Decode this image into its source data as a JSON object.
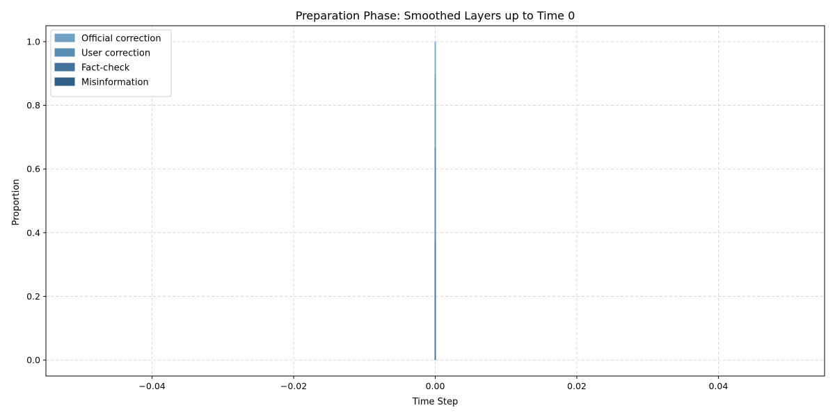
{
  "chart_data": {
    "type": "area",
    "title": "Preparation Phase: Smoothed Layers up to Time 0",
    "xlabel": "Time Step",
    "ylabel": "Proportion",
    "xlim": [
      -0.055,
      0.055
    ],
    "ylim": [
      -0.05,
      1.05
    ],
    "xticks": [
      -0.04,
      -0.02,
      0.0,
      0.02,
      0.04
    ],
    "xtick_labels": [
      "−0.04",
      "−0.02",
      "0.00",
      "0.02",
      "0.04"
    ],
    "yticks": [
      0.0,
      0.2,
      0.4,
      0.6,
      0.8,
      1.0
    ],
    "ytick_labels": [
      "0.0",
      "0.2",
      "0.4",
      "0.6",
      "0.8",
      "1.0"
    ],
    "grid": true,
    "stacked": true,
    "legend_position": "upper-left",
    "x": [
      0
    ],
    "series": [
      {
        "name": "Misinformation",
        "values": [
          0.37
        ],
        "color": "#2e5f86"
      },
      {
        "name": "Fact-check",
        "values": [
          0.3
        ],
        "color": "#42729a"
      },
      {
        "name": "User correction",
        "values": [
          0.23
        ],
        "color": "#5a8eb2"
      },
      {
        "name": "Official correction",
        "values": [
          0.1
        ],
        "color": "#6fa0c4"
      }
    ],
    "legend_order": [
      "Official correction",
      "User correction",
      "Fact-check",
      "Misinformation"
    ]
  }
}
